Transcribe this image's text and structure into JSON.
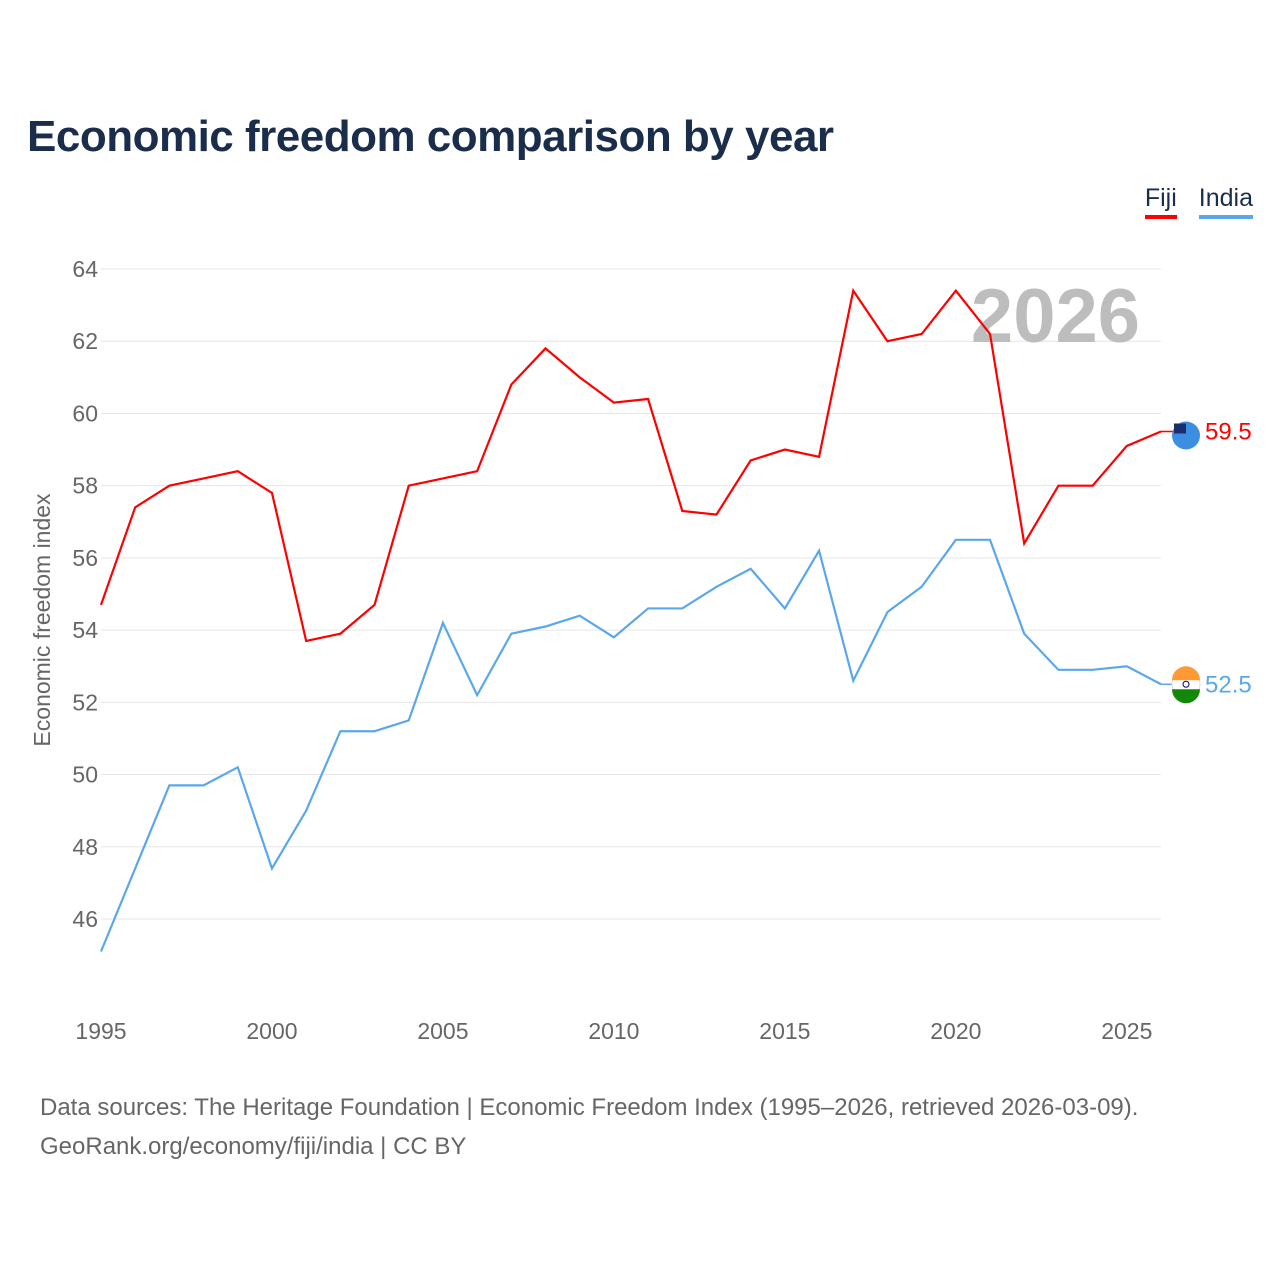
{
  "title": "Economic freedom comparison by year",
  "source_line1": "Data sources: The Heritage Foundation | Economic Freedom Index (1995–2026, retrieved 2026-03-09).",
  "source_line2": "GeoRank.org/economy/fiji/india | CC BY",
  "chart_data": {
    "type": "line",
    "title": "Economic freedom comparison by year",
    "xlabel": "",
    "ylabel": "Economic freedom index",
    "watermark_year": "2026",
    "xlim": [
      1995,
      2026
    ],
    "ylim": [
      44,
      64
    ],
    "yticks": [
      46,
      48,
      50,
      52,
      54,
      56,
      58,
      60,
      62,
      64
    ],
    "xticks": [
      1995,
      2000,
      2005,
      2010,
      2015,
      2020,
      2025
    ],
    "grid": true,
    "legend_position": "top-right",
    "x": [
      1995,
      1996,
      1997,
      1998,
      1999,
      2000,
      2001,
      2002,
      2003,
      2004,
      2005,
      2006,
      2007,
      2008,
      2009,
      2010,
      2011,
      2012,
      2013,
      2014,
      2015,
      2016,
      2017,
      2018,
      2019,
      2020,
      2021,
      2022,
      2023,
      2024,
      2025,
      2026
    ],
    "series": [
      {
        "name": "Fiji",
        "color": "#ff0000",
        "end_label": "59.5",
        "values": [
          54.7,
          57.4,
          58.0,
          58.2,
          58.4,
          57.8,
          53.7,
          53.9,
          54.7,
          58.0,
          58.2,
          58.4,
          60.8,
          61.8,
          61.0,
          60.3,
          60.4,
          57.3,
          57.2,
          58.7,
          59.0,
          58.8,
          63.4,
          62.0,
          62.2,
          63.4,
          62.2,
          56.4,
          58.0,
          58.0,
          59.1,
          59.5
        ]
      },
      {
        "name": "India",
        "color": "#5ba7ec",
        "end_label": "52.5",
        "values": [
          45.1,
          47.4,
          49.7,
          49.7,
          50.2,
          47.4,
          49.0,
          51.2,
          51.2,
          51.5,
          54.2,
          52.2,
          53.9,
          54.1,
          54.4,
          53.8,
          54.6,
          54.6,
          55.2,
          55.7,
          54.6,
          56.2,
          52.6,
          54.5,
          55.2,
          56.5,
          56.5,
          53.9,
          52.9,
          52.9,
          53.0,
          52.5
        ]
      }
    ]
  }
}
